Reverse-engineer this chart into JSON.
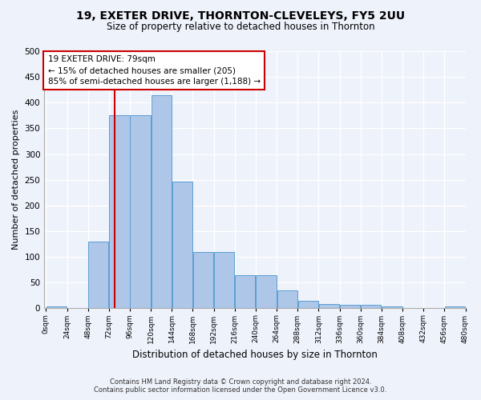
{
  "title": "19, EXETER DRIVE, THORNTON-CLEVELEYS, FY5 2UU",
  "subtitle": "Size of property relative to detached houses in Thornton",
  "xlabel": "Distribution of detached houses by size in Thornton",
  "ylabel": "Number of detached properties",
  "bar_values": [
    3,
    0,
    130,
    375,
    375,
    415,
    247,
    110,
    110,
    65,
    65,
    35,
    14,
    8,
    6,
    6,
    3,
    0,
    0,
    3
  ],
  "bin_edges": [
    0,
    24,
    48,
    72,
    96,
    120,
    144,
    168,
    192,
    216,
    240,
    264,
    288,
    312,
    336,
    360,
    384,
    408,
    432,
    456,
    480
  ],
  "tick_labels": [
    "0sqm",
    "24sqm",
    "48sqm",
    "72sqm",
    "96sqm",
    "120sqm",
    "144sqm",
    "168sqm",
    "192sqm",
    "216sqm",
    "240sqm",
    "264sqm",
    "288sqm",
    "312sqm",
    "336sqm",
    "360sqm",
    "384sqm",
    "408sqm",
    "432sqm",
    "456sqm",
    "480sqm"
  ],
  "bar_color": "#aec6e8",
  "bar_edge_color": "#5a9fd4",
  "property_sqm": 79,
  "vline_color": "#cc0000",
  "annotation_text": "19 EXETER DRIVE: 79sqm\n← 15% of detached houses are smaller (205)\n85% of semi-detached houses are larger (1,188) →",
  "annotation_box_color": "#ffffff",
  "annotation_box_edge": "#cc0000",
  "ylim": [
    0,
    500
  ],
  "yticks": [
    0,
    50,
    100,
    150,
    200,
    250,
    300,
    350,
    400,
    450,
    500
  ],
  "background_color": "#eef2fb",
  "grid_color": "#ffffff",
  "footer_line1": "Contains HM Land Registry data © Crown copyright and database right 2024.",
  "footer_line2": "Contains public sector information licensed under the Open Government Licence v3.0."
}
